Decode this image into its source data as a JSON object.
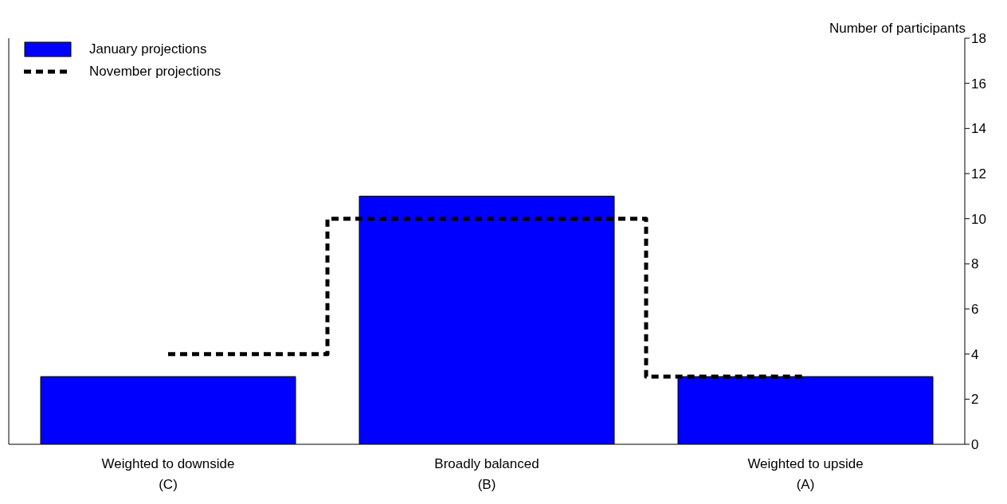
{
  "chart_data": {
    "type": "bar",
    "ylabel": "Number of participants",
    "categories": [
      "Weighted to downside (C)",
      "Broadly balanced (B)",
      "Weighted to upside (A)"
    ],
    "series": [
      {
        "name": "January projections",
        "color": "#0000ff",
        "values": [
          3,
          11,
          3
        ]
      },
      {
        "name": "November projections",
        "type": "step",
        "color": "#000000",
        "values": [
          4,
          10,
          3
        ],
        "line_style": "dashed"
      }
    ],
    "ylim": [
      0,
      18
    ],
    "yticks": [
      0,
      2,
      4,
      6,
      8,
      10,
      12,
      14,
      16,
      18
    ],
    "grid": false,
    "legend": "top left"
  }
}
